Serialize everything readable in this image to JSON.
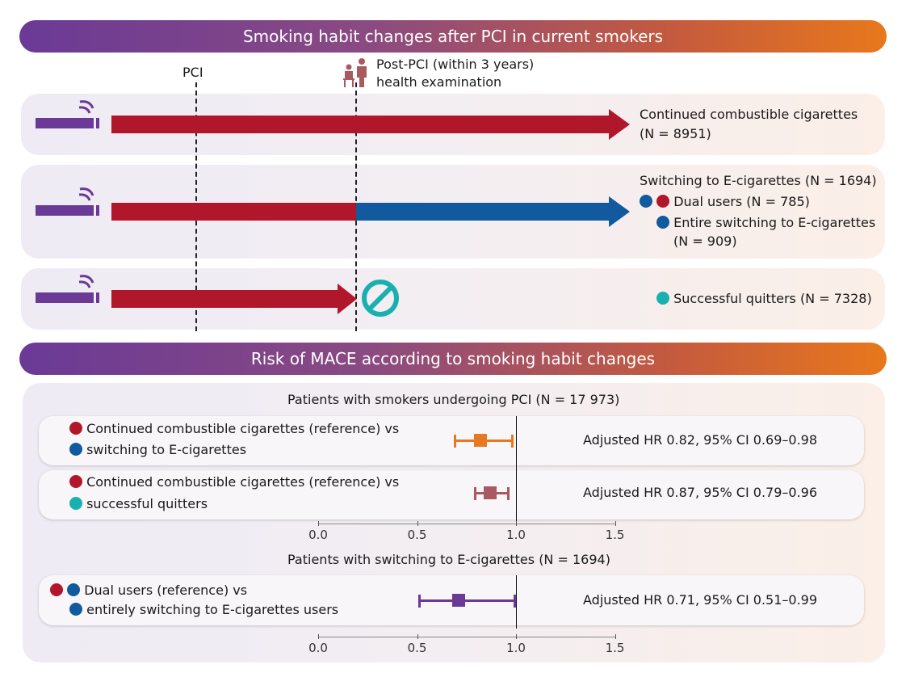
{
  "top_banner": {
    "title": "Smoking habit changes after PCI in current smokers"
  },
  "timeline": {
    "pci_label": "PCI",
    "post_pci_label_line1": "Post-PCI (within 3 years)",
    "post_pci_label_line2": "health examination"
  },
  "groups": {
    "continued": {
      "line1": "Continued combustible cigarettes",
      "line2": "(N = 8951)"
    },
    "switching": {
      "title": "Switching to E-cigarettes (N = 1694)",
      "dual": "Dual users (N = 785)",
      "entire_line1": "Entire switching to E-cigarettes",
      "entire_line2": "(N = 909)"
    },
    "quitters": {
      "label": "Successful quitters (N = 7328)"
    }
  },
  "bottom_banner": {
    "title": "Risk of MACE according to smoking habit changes"
  },
  "colors": {
    "red": "#b0172a",
    "blue": "#115a9e",
    "teal": "#1ab0b0",
    "orange": "#e87722",
    "mauve": "#a85a62",
    "purple": "#6a3a96"
  },
  "chart_data": [
    {
      "type": "scatter",
      "title": "Patients with smokers undergoing PCI (N = 17 973)",
      "x_ticks": [
        "0.0",
        "0.5",
        "1.0",
        "1.5"
      ],
      "xlim": [
        0,
        1.5
      ],
      "reference_line": 1.0,
      "rows": [
        {
          "line1": "Continued combustible cigarettes (reference) vs",
          "line2": "switching to E-cigarettes",
          "hr": 0.82,
          "ci_low": 0.69,
          "ci_high": 0.98,
          "hr_text": "Adjusted HR 0.82, 95% CI 0.69–0.98",
          "color": "#e87722"
        },
        {
          "line1": "Continued combustible cigarettes (reference) vs",
          "line2": "successful quitters",
          "hr": 0.87,
          "ci_low": 0.79,
          "ci_high": 0.96,
          "hr_text": "Adjusted HR 0.87, 95% CI 0.79–0.96",
          "color": "#a85a62"
        }
      ]
    },
    {
      "type": "scatter",
      "title": "Patients with switching to E-cigarettes (N = 1694)",
      "x_ticks": [
        "0.0",
        "0.5",
        "1.0",
        "1.5"
      ],
      "xlim": [
        0,
        1.5
      ],
      "reference_line": 1.0,
      "rows": [
        {
          "line1": "Dual users (reference) vs",
          "line2": "entirely switching to E-cigarettes users",
          "hr": 0.71,
          "ci_low": 0.51,
          "ci_high": 0.99,
          "hr_text": "Adjusted HR 0.71, 95% CI 0.51–0.99",
          "color": "#6a3a96"
        }
      ]
    }
  ]
}
